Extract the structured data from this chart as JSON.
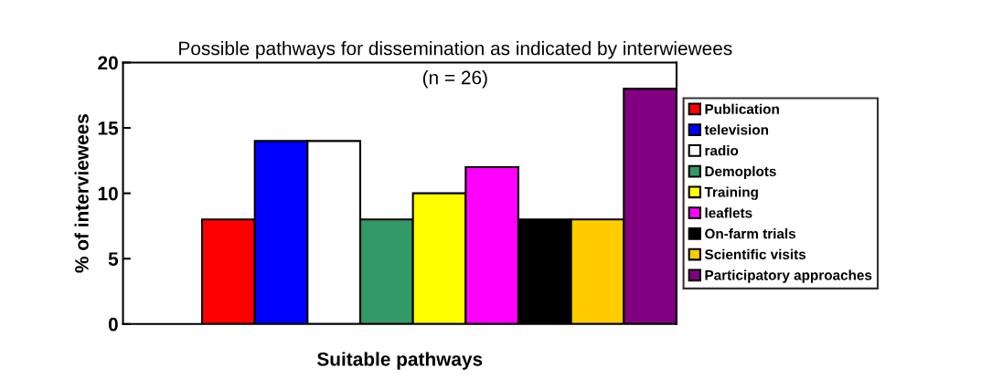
{
  "chart_data": {
    "type": "bar",
    "title": "Possible pathways for dissemination as indicated by interwiewees",
    "subtitle": "(n = 26)",
    "xlabel": "Suitable pathways",
    "ylabel": "% of interviewees",
    "categories": [
      null
    ],
    "series": [
      {
        "name": "Publication",
        "color": "#ff0000",
        "values": [
          8
        ]
      },
      {
        "name": "television",
        "color": "#0000ff",
        "values": [
          14
        ]
      },
      {
        "name": "radio",
        "color": "#ffffff",
        "values": [
          14
        ]
      },
      {
        "name": "Demoplots",
        "color": "#339966",
        "values": [
          8
        ]
      },
      {
        "name": "Training",
        "color": "#ffff00",
        "values": [
          10
        ]
      },
      {
        "name": "leaflets",
        "color": "#ff00ff",
        "values": [
          12
        ]
      },
      {
        "name": "On-farm trials",
        "color": "#000000",
        "values": [
          8
        ]
      },
      {
        "name": "Scientific visits",
        "color": "#ffcc00",
        "values": [
          8
        ]
      },
      {
        "name": "Participatory approaches",
        "color": "#800080",
        "values": [
          18
        ]
      }
    ],
    "ylim": [
      0,
      20
    ],
    "yticks": [
      0,
      5,
      10,
      15,
      20
    ],
    "grid": false,
    "legend": "right",
    "tick_labels": "y"
  }
}
